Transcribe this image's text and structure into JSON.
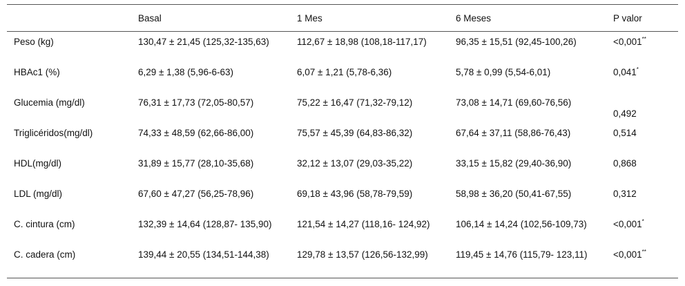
{
  "table": {
    "header": [
      "",
      "Basal",
      "1 Mes",
      "6 Meses",
      "P valor"
    ],
    "rows": [
      {
        "label": "Peso (kg)",
        "cells": [
          "130,47 ± 21,45 (125,32-135,63)",
          "112,67 ± 18,98 (108,18-117,17)",
          "96,35 ± 15,51 (92,45-100,26)"
        ],
        "p": "<0,001",
        "sup": "**"
      },
      {
        "label": "HBAc1 (%)",
        "cells": [
          "6,29 ± 1,38 (5,96-6-63)",
          "6,07 ± 1,21 (5,78-6,36)",
          "5,78 ± 0,99 (5,54-6,01)"
        ],
        "p": "0,041",
        "sup": "*"
      },
      {
        "label": "Glucemia (mg/dl)",
        "cells": [
          "76,31 ± 17,73 (72,05-80,57)",
          "75,22 ± 16,47 (71,32-79,12)",
          "73,08 ± 14,71 (69,60-76,56)"
        ],
        "p": "0,492"
      },
      {
        "label": "Triglicéridos(mg/dl)",
        "cells": [
          "74,33 ± 48,59 (62,66-86,00)",
          "75,57 ± 45,39 (64,83-86,32)",
          "67,64 ± 37,11 (58,86-76,43)"
        ],
        "p": "0,514"
      },
      {
        "label": "HDL(mg/dl)",
        "cells": [
          "31,89 ± 15,77 (28,10-35,68)",
          "32,12 ± 13,07 (29,03-35,22)",
          "33,15 ± 15,82 (29,40-36,90)"
        ],
        "p": "0,868"
      },
      {
        "label": "LDL (mg/dl)",
        "cells": [
          "67,60 ± 47,27 (56,25-78,96)",
          "69,18 ± 43,96 (58,78-79,59)",
          "58,98 ± 36,20 (50,41-67,55)"
        ],
        "p": "0,312"
      },
      {
        "label": "C. cintura (cm)",
        "cells": [
          "132,39 ± 14,64 (128,87- 135,90)",
          "121,54 ± 14,27 (118,16- 124,92)",
          "106,14 ± 14,24 (102,56-109,73)"
        ],
        "p": "<0,001",
        "sup": "*"
      },
      {
        "label": "C. cadera (cm)",
        "cells": [
          "139,44 ± 20,55 (134,51-144,38)",
          "129,78 ± 13,57 (126,56-132,99)",
          "119,45 ± 14,76 (115,79- 123,11)"
        ],
        "p": "<0,001",
        "sup": "**"
      }
    ]
  }
}
